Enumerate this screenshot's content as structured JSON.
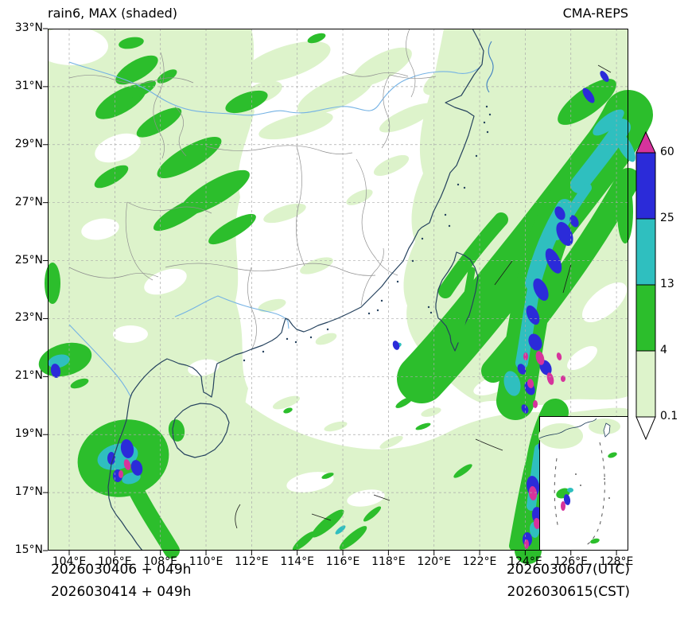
{
  "header": {
    "title": "rain6, MAX (shaded)",
    "source": "CMA-REPS"
  },
  "axes": {
    "x_ticks": [
      "104°E",
      "106°E",
      "108°E",
      "110°E",
      "112°E",
      "114°E",
      "116°E",
      "118°E",
      "120°E",
      "122°E",
      "124°E",
      "126°E",
      "128°E"
    ],
    "y_ticks": [
      "33°N",
      "31°N",
      "29°N",
      "27°N",
      "25°N",
      "23°N",
      "21°N",
      "19°N",
      "17°N",
      "15°N"
    ]
  },
  "colorbar": {
    "labels": [
      "60",
      "25",
      "13",
      "4",
      "0.1"
    ],
    "over_color": "#d6339c",
    "under_color": "#ffffff",
    "segment_colors_top_to_bottom": [
      "#2b2bd9",
      "#2fbfbf",
      "#2cbe2c",
      "#ddf3cb"
    ]
  },
  "footer": {
    "line1_left": "2026030406 + 049h",
    "line2_left": "2026030414 + 049h",
    "line1_right": "2026030607(UTC)",
    "line2_right": "2026030615(CST)"
  },
  "chart_data": {
    "type": "heatmap",
    "subtype": "filled-contour precipitation map",
    "title": "rain6, MAX (shaded)",
    "model": "CMA-REPS",
    "x_axis": {
      "label": "Longitude",
      "tick_values_deg_e": [
        104,
        106,
        108,
        110,
        112,
        114,
        116,
        118,
        120,
        122,
        124,
        126,
        128
      ],
      "range_deg_e": [
        103.1,
        128.5
      ]
    },
    "y_axis": {
      "label": "Latitude",
      "tick_values_deg_n": [
        33,
        31,
        29,
        27,
        25,
        23,
        21,
        19,
        17,
        15
      ],
      "range_deg_n": [
        15,
        33
      ]
    },
    "shading_levels": [
      0.1,
      4,
      13,
      25,
      60
    ],
    "shading_colors_low_to_high": [
      "#ffffff",
      "#ddf3cb",
      "#2cbe2c",
      "#2fbfbf",
      "#2b2bd9",
      "#d6339c"
    ],
    "colorbar_extend": "both",
    "grid": "dashed gray every 2 degrees",
    "forecast": {
      "init_utc": "2026030406",
      "init_cst": "2026030414",
      "lead": "049h",
      "valid_utc": "2026030607(UTC)",
      "valid_cst": "2026030615(CST)"
    },
    "precip_features": [
      "Broad NE-SW band of 4-13 shading east of Taiwan (~120-128E, 17-30N) with embedded 13-25 and 25-60 streaks",
      "Cluster of 25-60 and >60 cells along 121-124E, 21-27N east/southeast of Taiwan",
      "Light 0.1-4 shading over most of southwest China (103-110E)",
      "4-13 patches over the northwest of the domain (~104-109E, 27-33N)",
      "Cluster with 13-60 and >60 cores in the Gulf of Tonkin southwest of Hainan (~106-108E, 17.5-19.5N)",
      "Narrow heavy band with 25-60 and >60 cores near 121-122E, 15-18N",
      "Mostly below 0.1 over central China and the northern South China Sea",
      "South China Sea inset map in the bottom-right corner"
    ]
  }
}
